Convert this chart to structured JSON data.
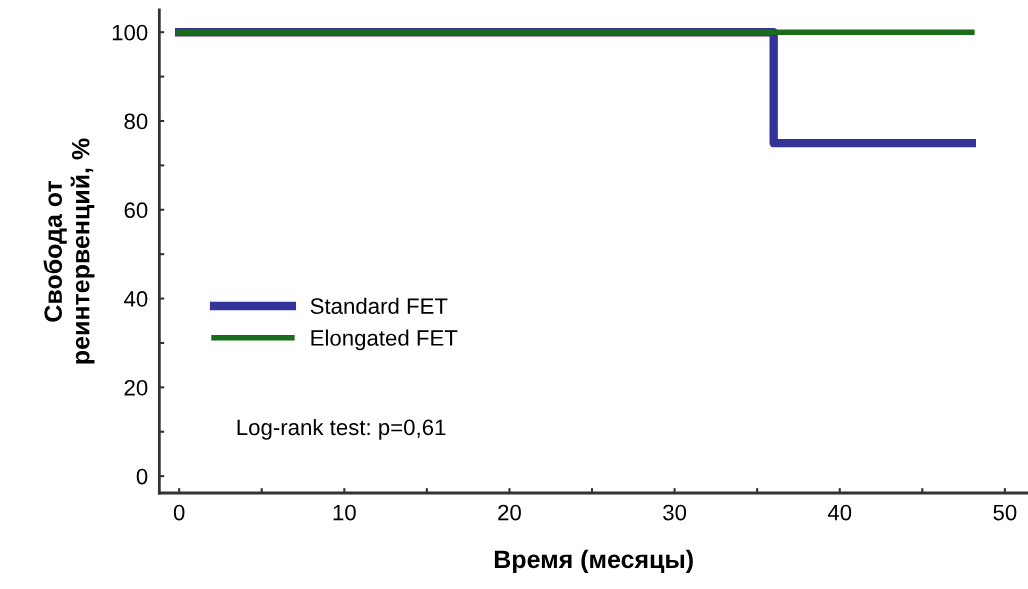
{
  "chart_data": {
    "type": "step",
    "xlabel": "Время (месяцы)",
    "ylabel": "Свобода от\nреинтервенций, %",
    "series": [
      {
        "name": "Standard FET",
        "color": "#333399",
        "x": [
          0,
          36,
          48
        ],
        "values": [
          100,
          75,
          75
        ]
      },
      {
        "name": "Elongated FET",
        "color": "#1a6b1a",
        "x": [
          0,
          48
        ],
        "values": [
          100,
          100
        ]
      }
    ],
    "xlim": [
      -1.2,
      51.4
    ],
    "ylim": [
      -3.8,
      105
    ],
    "xticks": [
      0,
      {
        "value": 5,
        "label": null
      },
      10,
      {
        "value": 15,
        "label": null
      },
      20,
      {
        "value": 25,
        "label": null
      },
      30,
      {
        "value": 35,
        "label": null
      },
      40,
      {
        "value": 45,
        "label": null
      },
      50
    ],
    "yticks": [
      0,
      {
        "value": 10,
        "label": null
      },
      20,
      {
        "value": 30,
        "label": null
      },
      40,
      {
        "value": 50,
        "label": null
      },
      60,
      {
        "value": 70,
        "label": null
      },
      80,
      {
        "value": 90,
        "label": null
      },
      100
    ],
    "annotations": [
      "Log-rank test: p=0,61"
    ],
    "legend": "left",
    "grid": false,
    "line_style": "solid"
  }
}
